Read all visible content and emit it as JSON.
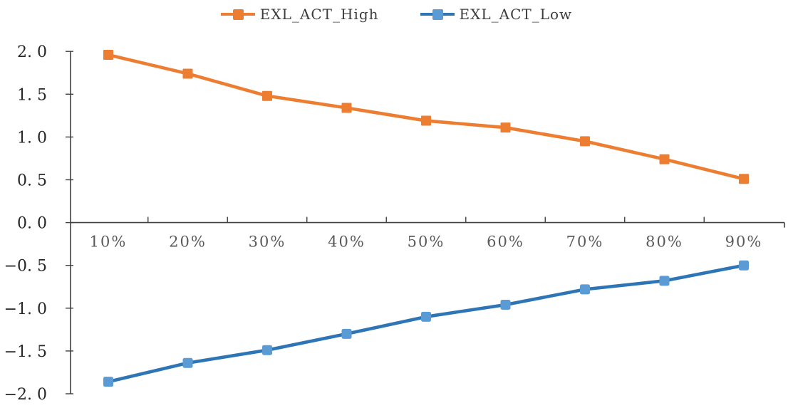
{
  "chart_data": {
    "type": "line",
    "title": "",
    "xlabel": "",
    "ylabel": "",
    "categories": [
      "10%",
      "20%",
      "30%",
      "40%",
      "50%",
      "60%",
      "70%",
      "80%",
      "90%"
    ],
    "series": [
      {
        "name": "EXL_ACT_High",
        "color": "#ED7D31",
        "marker_color": "#ED7D31",
        "marker": "square",
        "values": [
          1.96,
          1.74,
          1.48,
          1.34,
          1.19,
          1.11,
          0.95,
          0.74,
          0.51
        ]
      },
      {
        "name": "EXL_ACT_Low",
        "color": "#2E75B6",
        "marker_color": "#5B9BD5",
        "marker": "square",
        "values": [
          -1.86,
          -1.64,
          -1.49,
          -1.3,
          -1.1,
          -0.96,
          -0.78,
          -0.68,
          -0.5
        ]
      }
    ],
    "ylim": [
      -2.0,
      2.0
    ],
    "ytick_step": 0.5,
    "ytick_labels": [
      "2. 0",
      "1. 5",
      "1. 0",
      "0. 5",
      "0. 0",
      "−0. 5",
      "−1. 0",
      "−1. 5",
      "−2. 0"
    ],
    "grid": false,
    "legend_position": "top-center",
    "axis_color": "#404040",
    "ytick_label_color": "#262626",
    "xtick_label_color": "#595959"
  }
}
